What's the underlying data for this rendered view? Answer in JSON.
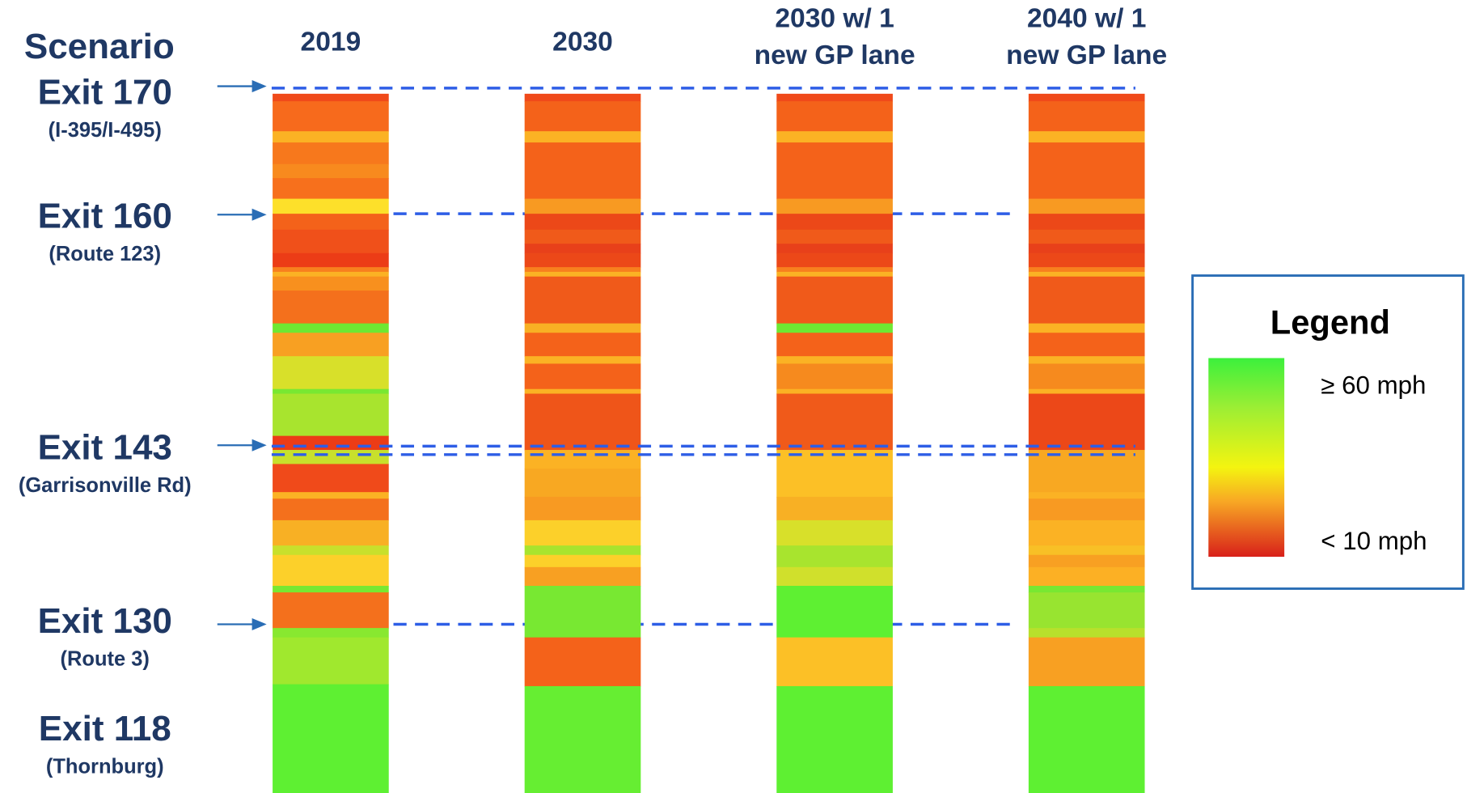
{
  "header": "Scenario",
  "columns": [
    {
      "title": [
        "2019"
      ]
    },
    {
      "title": [
        "2030"
      ]
    },
    {
      "title": [
        "2030 w/ 1",
        "new GP lane"
      ]
    },
    {
      "title": [
        "2040 w/ 1",
        "new GP lane"
      ]
    }
  ],
  "exits": [
    {
      "name": "Exit 170",
      "road": "(I-395/I-495)"
    },
    {
      "name": "Exit 160",
      "road": "(Route 123)"
    },
    {
      "name": "Exit 143",
      "road": "(Garrisonville Rd)"
    },
    {
      "name": "Exit 130",
      "road": "(Route 3)"
    },
    {
      "name": "Exit 118",
      "road": "(Thornburg)"
    }
  ],
  "legend": {
    "title": "Legend",
    "high": "≥ 60 mph",
    "low": "< 10 mph"
  }
}
